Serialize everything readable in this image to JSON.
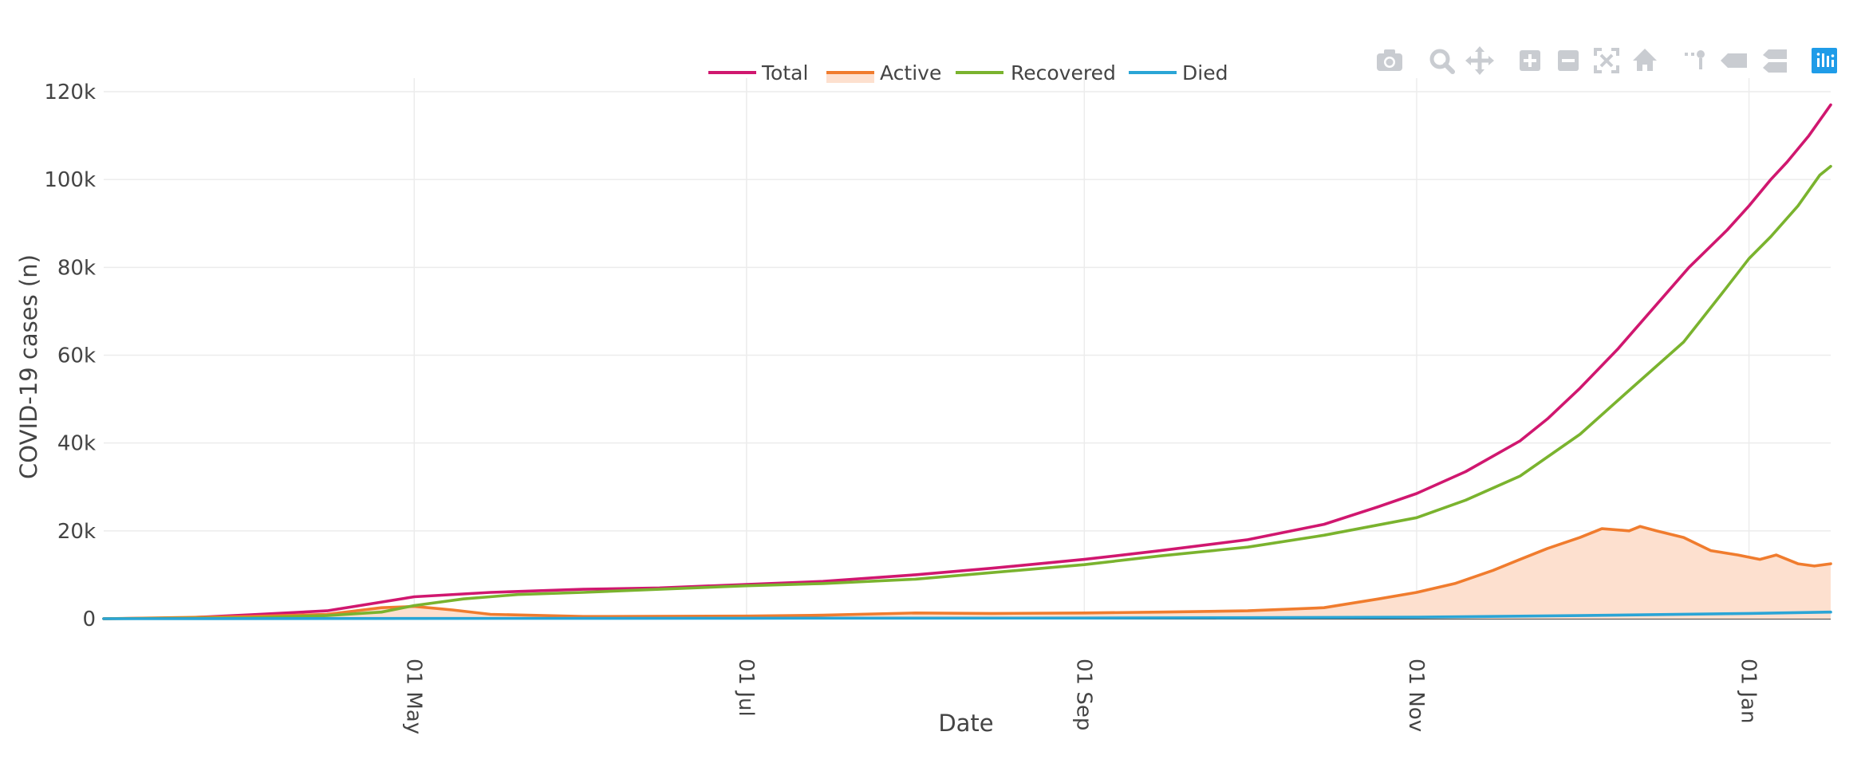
{
  "toolbar": {
    "buttons": [
      {
        "icon": "camera-icon",
        "name": "download-png-button"
      },
      {
        "icon": "zoom-icon",
        "name": "zoom-button"
      },
      {
        "icon": "pan-icon",
        "name": "pan-button"
      },
      {
        "icon": "zoom-in-icon",
        "name": "zoom-in-button"
      },
      {
        "icon": "zoom-out-icon",
        "name": "zoom-out-button"
      },
      {
        "icon": "autoscale-icon",
        "name": "autoscale-button"
      },
      {
        "icon": "home-icon",
        "name": "reset-axes-button"
      },
      {
        "icon": "spike-lines-icon",
        "name": "toggle-spike-lines-button"
      },
      {
        "icon": "hover-closest-icon",
        "name": "hover-closest-button"
      },
      {
        "icon": "hover-compare-icon",
        "name": "hover-compare-button"
      },
      {
        "icon": "plotly-logo-icon",
        "name": "plotly-logo-button"
      }
    ]
  },
  "chart_data": {
    "type": "line",
    "title": "",
    "xlabel": "Date",
    "ylabel": "COVID-19 cases (n)",
    "x_range": [
      "2020-03-05",
      "2021-01-16"
    ],
    "ylim": [
      0,
      120000
    ],
    "y_ticks": [
      0,
      20000,
      40000,
      60000,
      80000,
      100000,
      120000
    ],
    "y_tick_labels": [
      "0",
      "20k",
      "40k",
      "60k",
      "80k",
      "100k",
      "120k"
    ],
    "x_ticks": [
      "2020-05-01",
      "2020-07-01",
      "2020-09-01",
      "2020-11-01",
      "2021-01-01"
    ],
    "x_tick_labels": [
      "01 May",
      "01 Jul",
      "01 Sep",
      "01 Nov",
      "01 Jan"
    ],
    "grid": true,
    "legend_position": "top-center",
    "series": [
      {
        "name": "Total",
        "color": "#d0176f",
        "fill": false,
        "points": [
          [
            "2020-03-05",
            0
          ],
          [
            "2020-03-20",
            200
          ],
          [
            "2020-04-01",
            900
          ],
          [
            "2020-04-15",
            1800
          ],
          [
            "2020-04-20",
            2800
          ],
          [
            "2020-05-01",
            5000
          ],
          [
            "2020-05-15",
            6000
          ],
          [
            "2020-06-01",
            6700
          ],
          [
            "2020-06-15",
            7000
          ],
          [
            "2020-07-01",
            7800
          ],
          [
            "2020-07-15",
            8500
          ],
          [
            "2020-08-01",
            10000
          ],
          [
            "2020-08-15",
            11500
          ],
          [
            "2020-09-01",
            13500
          ],
          [
            "2020-09-15",
            15500
          ],
          [
            "2020-10-01",
            18000
          ],
          [
            "2020-10-15",
            21500
          ],
          [
            "2020-10-25",
            25500
          ],
          [
            "2020-11-01",
            28500
          ],
          [
            "2020-11-10",
            33500
          ],
          [
            "2020-11-20",
            40500
          ],
          [
            "2020-11-25",
            45500
          ],
          [
            "2020-12-01",
            52500
          ],
          [
            "2020-12-08",
            61500
          ],
          [
            "2020-12-15",
            71500
          ],
          [
            "2020-12-21",
            80000
          ],
          [
            "2020-12-28",
            88500
          ],
          [
            "2021-01-01",
            94000
          ],
          [
            "2021-01-05",
            100000
          ],
          [
            "2021-01-08",
            104000
          ],
          [
            "2021-01-12",
            110000
          ],
          [
            "2021-01-16",
            117000
          ]
        ]
      },
      {
        "name": "Active",
        "color": "#f07c2e",
        "fill": true,
        "fill_color": "#fde0cf",
        "points": [
          [
            "2020-03-05",
            0
          ],
          [
            "2020-04-01",
            500
          ],
          [
            "2020-04-15",
            1000
          ],
          [
            "2020-04-25",
            2500
          ],
          [
            "2020-05-01",
            2800
          ],
          [
            "2020-05-08",
            2000
          ],
          [
            "2020-05-15",
            1000
          ],
          [
            "2020-06-01",
            500
          ],
          [
            "2020-07-01",
            600
          ],
          [
            "2020-07-15",
            800
          ],
          [
            "2020-08-01",
            1300
          ],
          [
            "2020-08-15",
            1200
          ],
          [
            "2020-09-01",
            1300
          ],
          [
            "2020-09-15",
            1500
          ],
          [
            "2020-10-01",
            1800
          ],
          [
            "2020-10-15",
            2500
          ],
          [
            "2020-10-25",
            4500
          ],
          [
            "2020-11-01",
            6000
          ],
          [
            "2020-11-08",
            8000
          ],
          [
            "2020-11-15",
            11000
          ],
          [
            "2020-11-20",
            13500
          ],
          [
            "2020-11-25",
            16000
          ],
          [
            "2020-12-01",
            18500
          ],
          [
            "2020-12-05",
            20500
          ],
          [
            "2020-12-10",
            20000
          ],
          [
            "2020-12-12",
            21000
          ],
          [
            "2020-12-15",
            20000
          ],
          [
            "2020-12-20",
            18500
          ],
          [
            "2020-12-25",
            15500
          ],
          [
            "2020-12-30",
            14500
          ],
          [
            "2021-01-03",
            13500
          ],
          [
            "2021-01-06",
            14500
          ],
          [
            "2021-01-10",
            12500
          ],
          [
            "2021-01-13",
            12000
          ],
          [
            "2021-01-16",
            12500
          ]
        ]
      },
      {
        "name": "Recovered",
        "color": "#7ab32e",
        "fill": false,
        "points": [
          [
            "2020-03-05",
            0
          ],
          [
            "2020-04-01",
            200
          ],
          [
            "2020-04-15",
            700
          ],
          [
            "2020-04-25",
            1500
          ],
          [
            "2020-05-01",
            3000
          ],
          [
            "2020-05-10",
            4500
          ],
          [
            "2020-05-20",
            5500
          ],
          [
            "2020-06-01",
            6000
          ],
          [
            "2020-06-15",
            6700
          ],
          [
            "2020-07-01",
            7500
          ],
          [
            "2020-07-15",
            8000
          ],
          [
            "2020-08-01",
            9000
          ],
          [
            "2020-08-15",
            10500
          ],
          [
            "2020-09-01",
            12300
          ],
          [
            "2020-09-15",
            14300
          ],
          [
            "2020-10-01",
            16300
          ],
          [
            "2020-10-15",
            19000
          ],
          [
            "2020-11-01",
            23000
          ],
          [
            "2020-11-10",
            27000
          ],
          [
            "2020-11-20",
            32500
          ],
          [
            "2020-12-01",
            42000
          ],
          [
            "2020-12-10",
            52000
          ],
          [
            "2020-12-20",
            63000
          ],
          [
            "2020-12-27",
            74000
          ],
          [
            "2021-01-01",
            82000
          ],
          [
            "2021-01-05",
            87000
          ],
          [
            "2021-01-10",
            94000
          ],
          [
            "2021-01-14",
            101000
          ],
          [
            "2021-01-16",
            103000
          ]
        ]
      },
      {
        "name": "Died",
        "color": "#2aa5d6",
        "fill": false,
        "points": [
          [
            "2020-03-05",
            0
          ],
          [
            "2020-05-01",
            50
          ],
          [
            "2020-07-01",
            100
          ],
          [
            "2020-09-01",
            150
          ],
          [
            "2020-11-01",
            350
          ],
          [
            "2020-12-01",
            700
          ],
          [
            "2021-01-01",
            1200
          ],
          [
            "2021-01-16",
            1500
          ]
        ]
      }
    ]
  }
}
